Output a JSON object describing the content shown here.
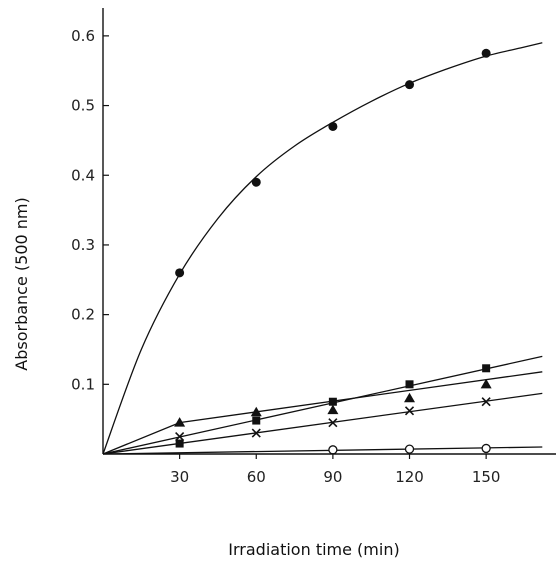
{
  "chart_data": {
    "type": "line",
    "title": "",
    "xlabel": "Irradiation time (min)",
    "ylabel": "Absorbance (500 nm)",
    "xlim": [
      0,
      175
    ],
    "ylim": [
      0,
      0.64
    ],
    "x_ticks": [
      {
        "value": 30,
        "label": "30"
      },
      {
        "value": 60,
        "label": "60"
      },
      {
        "value": 90,
        "label": "90"
      },
      {
        "value": 120,
        "label": "120"
      },
      {
        "value": 150,
        "label": "150"
      }
    ],
    "y_ticks": [
      {
        "value": 0.1,
        "label": "0.1"
      },
      {
        "value": 0.2,
        "label": "0.2"
      },
      {
        "value": 0.3,
        "label": "0.3"
      },
      {
        "value": 0.4,
        "label": "0.4"
      },
      {
        "value": 0.5,
        "label": "0.5"
      },
      {
        "value": 0.6,
        "label": "0.6"
      }
    ],
    "grid": false,
    "legend": "none",
    "series": [
      {
        "marker": "filled-circle",
        "x": [
          30,
          60,
          90,
          120,
          150
        ],
        "y": [
          0.26,
          0.39,
          0.47,
          0.53,
          0.575
        ],
        "curve": {
          "x": [
            0,
            15,
            30,
            45,
            60,
            75,
            90,
            105,
            120,
            135,
            150,
            165,
            172
          ],
          "y": [
            0,
            0.15,
            0.258,
            0.338,
            0.398,
            0.442,
            0.476,
            0.506,
            0.532,
            0.553,
            0.571,
            0.584,
            0.59
          ]
        }
      },
      {
        "marker": "filled-square",
        "x": [
          30,
          60,
          90,
          120,
          150
        ],
        "y": [
          0.015,
          0.048,
          0.075,
          0.1,
          0.123
        ],
        "curve": {
          "x": [
            0,
            172
          ],
          "y": [
            0,
            0.14
          ]
        }
      },
      {
        "marker": "filled-triangle",
        "x": [
          30,
          60,
          90,
          120,
          150
        ],
        "y": [
          0.045,
          0.06,
          0.063,
          0.08,
          0.1
        ],
        "curve": {
          "x": [
            0,
            30,
            172
          ],
          "y": [
            0,
            0.045,
            0.118
          ]
        }
      },
      {
        "marker": "cross",
        "x": [
          30,
          60,
          90,
          120,
          150
        ],
        "y": [
          0.025,
          0.03,
          0.045,
          0.062,
          0.075
        ],
        "curve": {
          "x": [
            0,
            172
          ],
          "y": [
            0,
            0.087
          ]
        }
      },
      {
        "marker": "open-circle",
        "x": [
          90,
          120,
          150
        ],
        "y": [
          0.006,
          0.007,
          0.008
        ],
        "curve": {
          "x": [
            0,
            172
          ],
          "y": [
            0,
            0.01
          ]
        }
      }
    ]
  }
}
